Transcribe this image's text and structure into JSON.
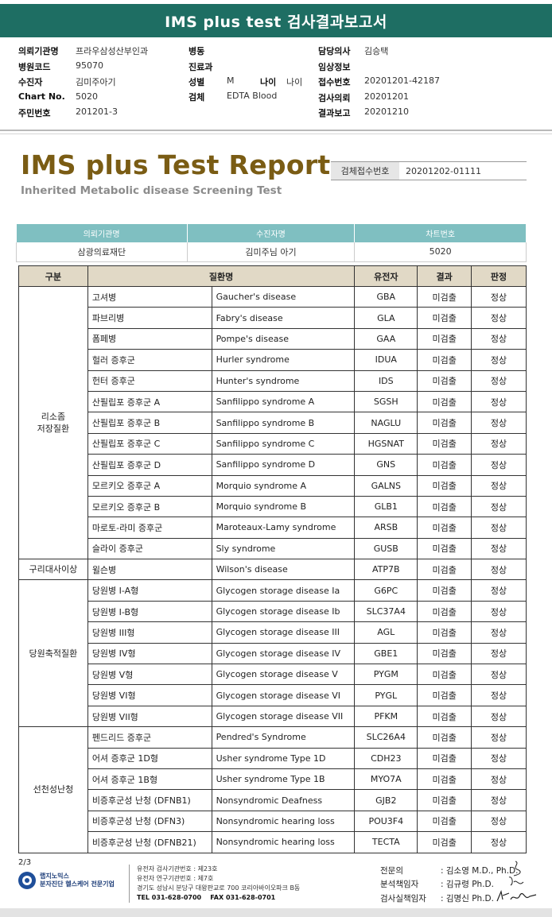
{
  "banner": {
    "title": "IMS plus test 검사결과보고서"
  },
  "info": {
    "col1": [
      {
        "label": "의뢰기관명",
        "value": "프라우삼성산부인과"
      },
      {
        "label": "병원코드",
        "value": "95070"
      },
      {
        "label": "수진자",
        "value": "김미주아기"
      },
      {
        "label": "Chart No.",
        "value": "5020"
      },
      {
        "label": "주민번호",
        "value": "201201-3"
      }
    ],
    "col2": [
      {
        "label": "병동",
        "value": ""
      },
      {
        "label": "진료과",
        "value": ""
      },
      {
        "label": "성별",
        "value": "M"
      },
      {
        "label": "검체",
        "value": "EDTA Blood"
      }
    ],
    "age": {
      "label": "나이",
      "value": "나이"
    },
    "col3": [
      {
        "label": "담당의사",
        "value": "김승택"
      },
      {
        "label": "임상정보",
        "value": ""
      },
      {
        "label": "접수번호",
        "value": "20201201-42187"
      },
      {
        "label": "검사의뢰",
        "value": "20201201"
      },
      {
        "label": "결과보고",
        "value": "20201210"
      }
    ]
  },
  "report": {
    "title": "IMS plus Test Report",
    "subtitle": "Inherited Metabolic disease Screening Test",
    "specimen_label": "검체접수번호",
    "specimen_value": "20201202-01111"
  },
  "org_table": {
    "headers": [
      "의뢰기관명",
      "수진자명",
      "차트번호"
    ],
    "values": [
      "삼광의료재단",
      "김미주님 아기",
      "5020"
    ]
  },
  "main_table": {
    "headers": [
      "구분",
      "질환명",
      "유전자",
      "결과",
      "판정"
    ],
    "groups": [
      {
        "name_lines": [
          "리소좀",
          "저장질환"
        ],
        "rows": [
          {
            "ko": "고셔병",
            "en": "Gaucher's disease",
            "gene": "GBA",
            "result": "미검출",
            "verdict": "정상"
          },
          {
            "ko": "파브리병",
            "en": "Fabry's disease",
            "gene": "GLA",
            "result": "미검출",
            "verdict": "정상"
          },
          {
            "ko": "폼페병",
            "en": "Pompe's disease",
            "gene": "GAA",
            "result": "미검출",
            "verdict": "정상"
          },
          {
            "ko": "헐러 증후군",
            "en": "Hurler syndrome",
            "gene": "IDUA",
            "result": "미검출",
            "verdict": "정상"
          },
          {
            "ko": "헌터 증후군",
            "en": "Hunter's syndrome",
            "gene": "IDS",
            "result": "미검출",
            "verdict": "정상"
          },
          {
            "ko": "산필립포 증후군 A",
            "en": "Sanfilippo syndrome A",
            "gene": "SGSH",
            "result": "미검출",
            "verdict": "정상"
          },
          {
            "ko": "산필립포 증후군 B",
            "en": "Sanfilippo syndrome B",
            "gene": "NAGLU",
            "result": "미검출",
            "verdict": "정상"
          },
          {
            "ko": "산필립포 증후군 C",
            "en": "Sanfilippo syndrome C",
            "gene": "HGSNAT",
            "result": "미검출",
            "verdict": "정상"
          },
          {
            "ko": "산필립포 증후군 D",
            "en": "Sanfilippo syndrome D",
            "gene": "GNS",
            "result": "미검출",
            "verdict": "정상"
          },
          {
            "ko": "모르키오 증후군 A",
            "en": "Morquio syndrome A",
            "gene": "GALNS",
            "result": "미검출",
            "verdict": "정상"
          },
          {
            "ko": "모르키오 증후군 B",
            "en": "Morquio syndrome B",
            "gene": "GLB1",
            "result": "미검출",
            "verdict": "정상"
          },
          {
            "ko": "마로토-라미 증후군",
            "en": "Maroteaux-Lamy syndrome",
            "gene": "ARSB",
            "result": "미검출",
            "verdict": "정상"
          },
          {
            "ko": "슬라이 증후군",
            "en": "Sly syndrome",
            "gene": "GUSB",
            "result": "미검출",
            "verdict": "정상"
          }
        ]
      },
      {
        "name_lines": [
          "구리대사이상"
        ],
        "rows": [
          {
            "ko": "윌슨병",
            "en": "Wilson's disease",
            "gene": "ATP7B",
            "result": "미검출",
            "verdict": "정상"
          }
        ]
      },
      {
        "name_lines": [
          "당원축적질환"
        ],
        "rows": [
          {
            "ko": "당원병 I-A형",
            "en": "Glycogen storage disease Ia",
            "gene": "G6PC",
            "result": "미검출",
            "verdict": "정상"
          },
          {
            "ko": "당원병 I-B형",
            "en": "Glycogen storage disease Ib",
            "gene": "SLC37A4",
            "result": "미검출",
            "verdict": "정상"
          },
          {
            "ko": "당원병 III형",
            "en": "Glycogen storage disease III",
            "gene": "AGL",
            "result": "미검출",
            "verdict": "정상"
          },
          {
            "ko": "당원병 IV형",
            "en": "Glycogen storage disease IV",
            "gene": "GBE1",
            "result": "미검출",
            "verdict": "정상"
          },
          {
            "ko": "당원병 V형",
            "en": "Glycogen storage disease V",
            "gene": "PYGM",
            "result": "미검출",
            "verdict": "정상"
          },
          {
            "ko": "당원병 VI형",
            "en": "Glycogen storage disease VI",
            "gene": "PYGL",
            "result": "미검출",
            "verdict": "정상"
          },
          {
            "ko": "당원병 VII형",
            "en": "Glycogen storage disease VII",
            "gene": "PFKM",
            "result": "미검출",
            "verdict": "정상"
          }
        ]
      },
      {
        "name_lines": [
          "선천성난청"
        ],
        "rows": [
          {
            "ko": "펜드리드 증후군",
            "en": "Pendred's Syndrome",
            "gene": "SLC26A4",
            "result": "미검출",
            "verdict": "정상"
          },
          {
            "ko": "어셔 증후군 1D형",
            "en": "Usher syndrome Type 1D",
            "gene": "CDH23",
            "result": "미검출",
            "verdict": "정상"
          },
          {
            "ko": "어셔 증후군 1B형",
            "en": "Usher syndrome Type 1B",
            "gene": "MYO7A",
            "result": "미검출",
            "verdict": "정상"
          },
          {
            "ko": "비증후군성 난청 (DFNB1)",
            "en": "Nonsyndromic Deafness",
            "gene": "GJB2",
            "result": "미검출",
            "verdict": "정상"
          },
          {
            "ko": "비증후군성 난청 (DFN3)",
            "en": "Nonsyndromic hearing loss",
            "gene": "POU3F4",
            "result": "미검출",
            "verdict": "정상"
          },
          {
            "ko": "비증후군성 난청 (DFNB21)",
            "en": "Nonsyndromic hearing loss",
            "gene": "TECTA",
            "result": "미검출",
            "verdict": "정상"
          }
        ]
      }
    ]
  },
  "footer": {
    "page": "2/3",
    "logo_lines": [
      "랩지노믹스",
      "분자진단 헬스케어 전문기업"
    ],
    "address_lines": [
      "유전자 검사기관번호 : 제23호",
      "유전자 연구기관번호 : 제7호",
      "경기도 성남시 분당구 대왕판교로 700 코리아바이오파크 B동"
    ],
    "tel": "TEL 031-628-0700",
    "fax": "FAX 031-628-0701",
    "signers": [
      {
        "role": "전문의",
        "name": "김소영 M.D., Ph.D."
      },
      {
        "role": "분석책임자",
        "name": "김규령 Ph.D."
      },
      {
        "role": "검사실책임자",
        "name": "김명신 Ph.D."
      }
    ]
  }
}
